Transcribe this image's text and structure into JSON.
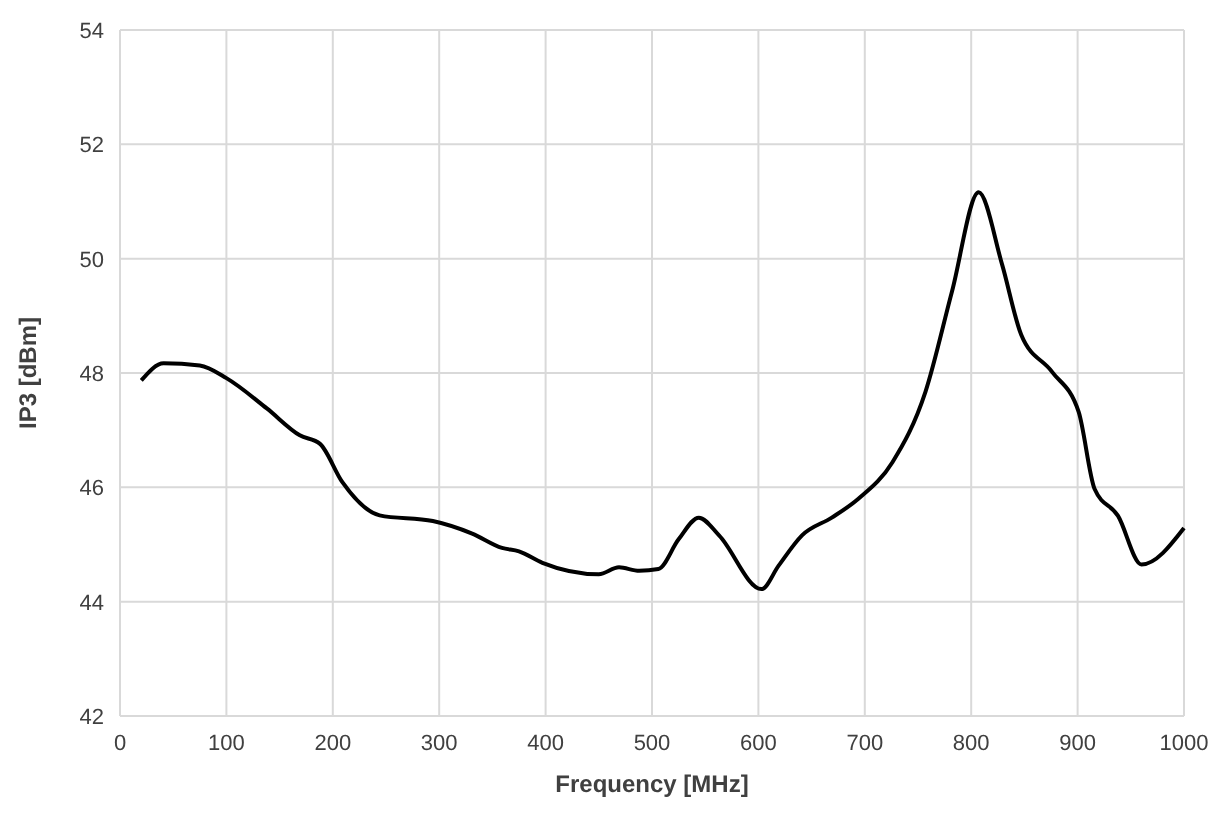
{
  "chart_data": {
    "type": "line",
    "xlabel": "Frequency [MHz]",
    "ylabel": "IP3 [dBm]",
    "xlim": [
      0,
      1000
    ],
    "xticks": [
      0,
      100,
      200,
      300,
      400,
      500,
      600,
      700,
      800,
      900,
      1000
    ],
    "ylim": [
      42,
      54
    ],
    "yticks": [
      42,
      44,
      46,
      48,
      50,
      52,
      54
    ],
    "grid": true,
    "marker": "none",
    "line_style": "solid",
    "series": [
      {
        "color": "#000000",
        "x": [
          20,
          41,
          75,
          100,
          138,
          169,
          188,
          209,
          244,
          294,
          331,
          359,
          375,
          397,
          450,
          469,
          488,
          506,
          525,
          544,
          563,
          603,
          619,
          641,
          669,
          694,
          726,
          757,
          782,
          807,
          829,
          847,
          876,
          901,
          916,
          938,
          960,
          1000
        ],
        "values": [
          47.87,
          48.17,
          48.13,
          47.91,
          47.38,
          46.91,
          46.76,
          46.09,
          45.51,
          45.41,
          45.19,
          44.94,
          44.88,
          44.68,
          44.48,
          44.6,
          44.54,
          44.57,
          45.09,
          45.47,
          45.16,
          44.22,
          44.63,
          45.16,
          45.47,
          45.8,
          46.44,
          47.67,
          49.43,
          51.16,
          49.9,
          48.67,
          48.02,
          47.32,
          45.97,
          45.5,
          44.65,
          45.29
        ]
      }
    ]
  }
}
